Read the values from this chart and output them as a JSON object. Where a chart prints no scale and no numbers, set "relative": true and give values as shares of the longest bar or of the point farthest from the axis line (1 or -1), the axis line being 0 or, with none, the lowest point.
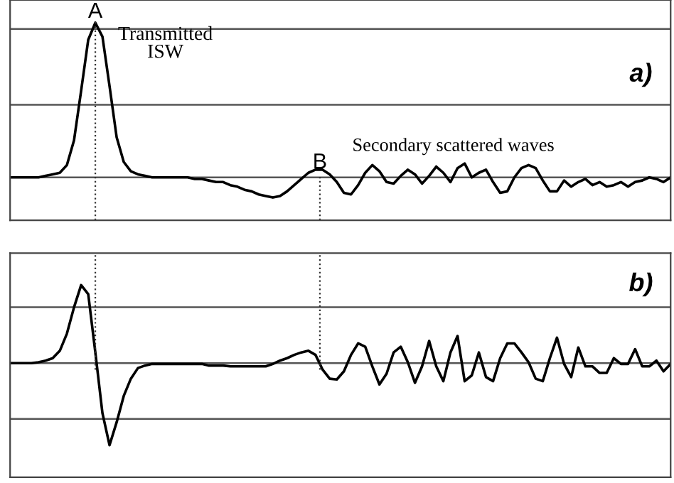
{
  "chart_data": [
    {
      "type": "line",
      "relative": true,
      "marker": "none",
      "line_style": "solid",
      "categories": [
        null,
        null,
        null,
        null,
        null,
        null,
        null,
        null,
        null,
        null,
        null,
        null,
        null,
        null,
        null,
        null,
        null,
        null,
        null,
        null,
        null,
        null,
        null,
        null,
        null,
        null,
        null,
        null,
        null,
        null,
        null,
        null,
        null,
        null,
        null,
        null,
        null,
        null,
        null,
        null,
        null,
        null,
        null,
        null,
        null,
        null,
        null,
        null,
        null,
        null,
        null,
        null,
        null,
        null,
        null,
        null,
        null,
        null,
        null,
        null,
        null,
        null,
        null,
        null,
        null,
        null,
        null,
        null,
        null,
        null,
        null,
        null,
        null,
        null,
        null,
        null,
        null,
        null,
        null,
        null,
        null,
        null,
        null,
        null,
        null,
        null,
        null,
        null,
        null,
        null,
        null,
        null,
        null,
        null
      ],
      "series": [
        {
          "color": "#000000",
          "values": [
            0,
            0,
            0,
            0,
            0,
            0.01,
            0.02,
            0.03,
            0.08,
            0.24,
            0.56,
            0.89,
            1,
            0.91,
            0.59,
            0.26,
            0.1,
            0.04,
            0.02,
            0.01,
            0,
            0,
            0,
            0,
            0,
            0,
            -0.01,
            -0.01,
            -0.02,
            -0.03,
            -0.03,
            -0.05,
            -0.06,
            -0.08,
            -0.09,
            -0.11,
            -0.12,
            -0.13,
            -0.12,
            -0.09,
            -0.05,
            -0.01,
            0.03,
            0.05,
            0.05,
            0.02,
            -0.03,
            -0.1,
            -0.11,
            -0.05,
            0.03,
            0.08,
            0.04,
            -0.03,
            -0.04,
            0.01,
            0.05,
            0.02,
            -0.04,
            0.01,
            0.07,
            0.03,
            -0.03,
            0.06,
            0.09,
            0,
            0.03,
            0.05,
            -0.03,
            -0.1,
            -0.09,
            0,
            0.06,
            0.08,
            0.06,
            -0.02,
            -0.09,
            -0.09,
            -0.02,
            -0.06,
            -0.03,
            -0.01,
            -0.05,
            -0.03,
            -0.06,
            -0.05,
            -0.03,
            -0.06,
            -0.03,
            -0.02,
            0,
            -0.01,
            -0.03,
            0
          ]
        }
      ],
      "ref_lines": [
        {
          "axis": "y",
          "value": 0,
          "color": "#555555"
        },
        {
          "axis": "y",
          "value": 0.47,
          "color": "#555555"
        },
        {
          "axis": "y",
          "value": 0.96,
          "color": "#555555"
        }
      ],
      "annotations": [
        "Transmitted\nISW",
        "Secondary scattered waves",
        "a)",
        "A",
        "B"
      ]
    },
    {
      "type": "line",
      "relative": true,
      "marker": "none",
      "line_style": "solid",
      "categories": [
        null,
        null,
        null,
        null,
        null,
        null,
        null,
        null,
        null,
        null,
        null,
        null,
        null,
        null,
        null,
        null,
        null,
        null,
        null,
        null,
        null,
        null,
        null,
        null,
        null,
        null,
        null,
        null,
        null,
        null,
        null,
        null,
        null,
        null,
        null,
        null,
        null,
        null,
        null,
        null,
        null,
        null,
        null,
        null,
        null,
        null,
        null,
        null,
        null,
        null,
        null,
        null,
        null,
        null,
        null,
        null,
        null,
        null,
        null,
        null,
        null,
        null,
        null,
        null,
        null,
        null,
        null,
        null,
        null,
        null,
        null,
        null,
        null,
        null,
        null,
        null,
        null,
        null,
        null,
        null,
        null,
        null,
        null,
        null,
        null,
        null,
        null,
        null,
        null,
        null,
        null,
        null,
        null,
        null
      ],
      "series": [
        {
          "color": "#000000",
          "values": [
            0,
            0,
            0,
            0,
            0.01,
            0.03,
            0.06,
            0.15,
            0.36,
            0.68,
            0.95,
            0.84,
            0.13,
            -0.61,
            -1,
            -0.72,
            -0.4,
            -0.19,
            -0.06,
            -0.03,
            -0.01,
            -0.01,
            -0.01,
            -0.01,
            -0.01,
            -0.01,
            -0.01,
            -0.01,
            -0.03,
            -0.03,
            -0.03,
            -0.04,
            -0.04,
            -0.04,
            -0.04,
            -0.04,
            -0.04,
            -0.01,
            0.03,
            0.06,
            0.1,
            0.13,
            0.15,
            0.1,
            -0.08,
            -0.19,
            -0.2,
            -0.1,
            0.1,
            0.24,
            0.2,
            -0.04,
            -0.26,
            -0.13,
            0.13,
            0.2,
            0.01,
            -0.24,
            -0.04,
            0.27,
            -0.04,
            -0.22,
            0.13,
            0.33,
            -0.22,
            -0.15,
            0.13,
            -0.17,
            -0.22,
            0.06,
            0.24,
            0.24,
            0.13,
            0.01,
            -0.19,
            -0.22,
            0.06,
            0.31,
            -0.01,
            -0.17,
            0.19,
            -0.04,
            -0.04,
            -0.12,
            -0.12,
            0.06,
            -0.01,
            -0.01,
            0.17,
            -0.04,
            -0.04,
            0.03,
            -0.1,
            -0.01
          ]
        }
      ],
      "ref_lines": [
        {
          "axis": "y",
          "value": -0.68,
          "color": "#555555"
        },
        {
          "axis": "y",
          "value": 0,
          "color": "#555555"
        },
        {
          "axis": "y",
          "value": 0.68,
          "color": "#555555"
        }
      ],
      "annotations": [
        "b)"
      ]
    }
  ]
}
